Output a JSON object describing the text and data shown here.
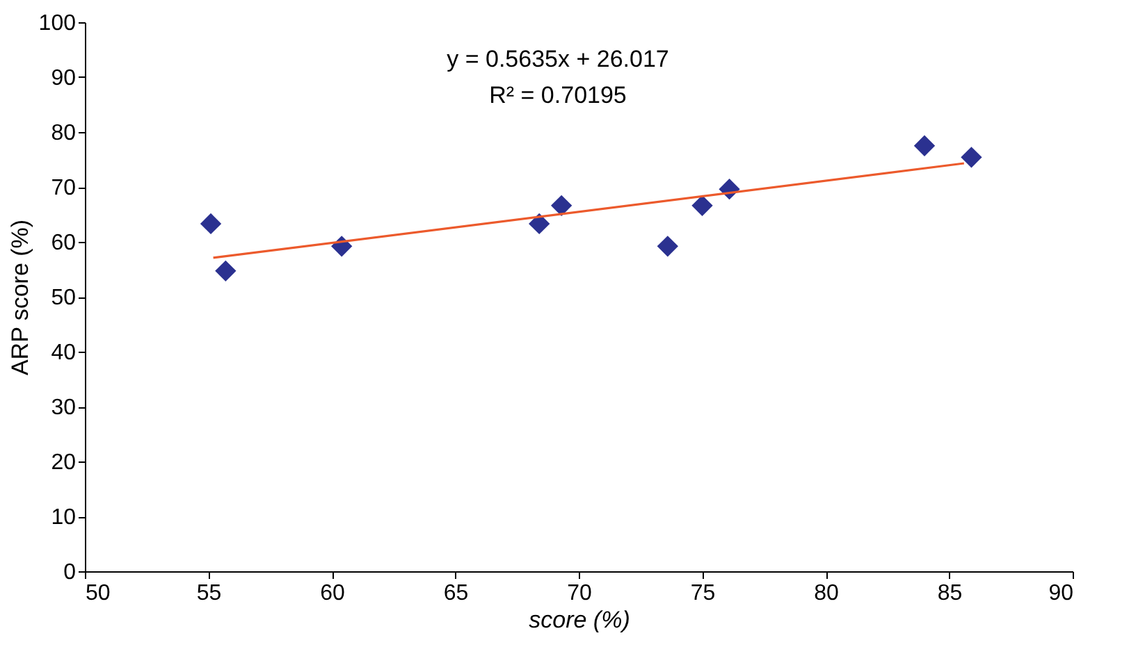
{
  "chart_data": {
    "type": "scatter",
    "xlabel": "score (%)",
    "ylabel": "ARP score (%)",
    "xlim": [
      50,
      90
    ],
    "xticks": [
      50,
      55,
      60,
      65,
      70,
      75,
      80,
      85,
      90
    ],
    "ylim": [
      0,
      100
    ],
    "yticks": [
      0,
      10,
      20,
      30,
      40,
      50,
      60,
      70,
      80,
      90,
      100
    ],
    "annotations": [
      "y = 0.5635x + 26.017",
      "R² = 0.70195"
    ],
    "series": [
      {
        "marker": "diamond",
        "color": "#2b3190",
        "x": [
          55.1,
          55.7,
          60.4,
          68.4,
          69.3,
          73.6,
          75.0,
          76.1,
          84.0,
          85.9
        ],
        "values": [
          63.3,
          54.7,
          59.2,
          63.3,
          66.6,
          59.2,
          66.6,
          69.6,
          77.5,
          75.4
        ]
      },
      {
        "type": "line",
        "color": "#ec5a2c",
        "x": [
          55.2,
          85.6
        ],
        "values": [
          57.1,
          74.3
        ]
      }
    ]
  }
}
